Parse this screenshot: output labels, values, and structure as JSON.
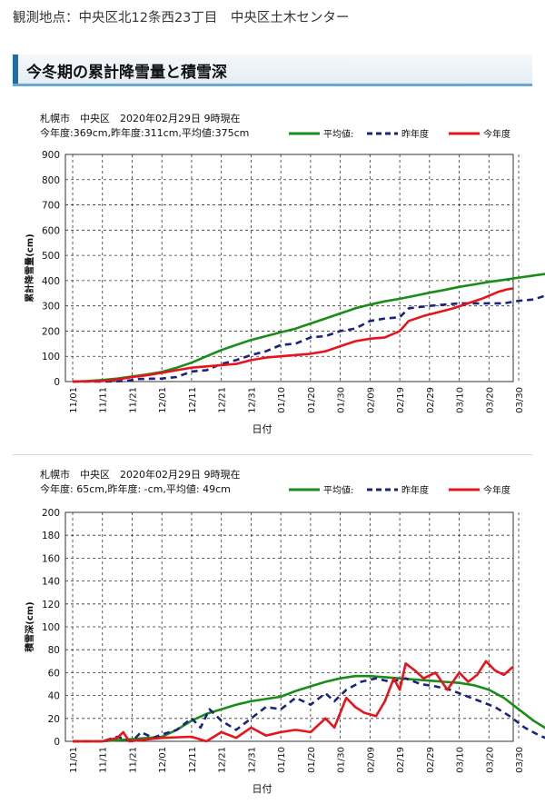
{
  "page": {
    "location": "観測地点：中央区北12条西23丁目　中央区土木センター",
    "heading": "今冬期の累計降雪量と積雪深"
  },
  "colors": {
    "avg": "#1a8c1a",
    "last": "#1a237e",
    "this": "#e8141c"
  },
  "chart_data": [
    {
      "type": "line",
      "header_line1": "札幌市　中央区　2020年02月29日 9時現在",
      "header_line2": "今年度:369cm,昨年度:311cm,平均値:375cm",
      "ylabel": "累計降雪量(cm)",
      "xlabel": "日付",
      "ylim": [
        0,
        900
      ],
      "yticks": [
        0,
        100,
        200,
        300,
        400,
        500,
        600,
        700,
        800,
        900
      ],
      "x_unit": "days since 11/01",
      "xticks": [
        "11/01",
        "11/11",
        "11/21",
        "12/01",
        "12/11",
        "12/21",
        "12/31",
        "01/10",
        "01/20",
        "01/30",
        "02/09",
        "02/19",
        "02/29",
        "03/10",
        "03/20",
        "03/30"
      ],
      "legend": [
        "平均値:",
        "昨年度",
        "今年度"
      ],
      "grid": true,
      "series": [
        {
          "name": "平均値:",
          "style": "solid",
          "color": "#1a8c1a",
          "points": [
            [
              0,
              0
            ],
            [
              5,
              2
            ],
            [
              10,
              6
            ],
            [
              15,
              12
            ],
            [
              20,
              20
            ],
            [
              25,
              28
            ],
            [
              30,
              38
            ],
            [
              35,
              55
            ],
            [
              40,
              75
            ],
            [
              45,
              100
            ],
            [
              50,
              125
            ],
            [
              55,
              145
            ],
            [
              60,
              165
            ],
            [
              65,
              180
            ],
            [
              70,
              195
            ],
            [
              75,
              210
            ],
            [
              80,
              230
            ],
            [
              85,
              250
            ],
            [
              90,
              270
            ],
            [
              95,
              290
            ],
            [
              100,
              305
            ],
            [
              105,
              318
            ],
            [
              110,
              328
            ],
            [
              115,
              340
            ],
            [
              120,
              352
            ],
            [
              125,
              363
            ],
            [
              130,
              375
            ],
            [
              135,
              385
            ],
            [
              140,
              395
            ],
            [
              145,
              403
            ],
            [
              150,
              412
            ],
            [
              155,
              420
            ],
            [
              160,
              428
            ],
            [
              163,
              430
            ]
          ]
        },
        {
          "name": "昨年度",
          "style": "dashed",
          "color": "#1a237e",
          "points": [
            [
              0,
              0
            ],
            [
              10,
              0
            ],
            [
              18,
              2
            ],
            [
              22,
              10
            ],
            [
              30,
              12
            ],
            [
              35,
              18
            ],
            [
              40,
              40
            ],
            [
              45,
              45
            ],
            [
              50,
              70
            ],
            [
              55,
              85
            ],
            [
              60,
              105
            ],
            [
              65,
              120
            ],
            [
              70,
              145
            ],
            [
              75,
              150
            ],
            [
              80,
              175
            ],
            [
              85,
              180
            ],
            [
              90,
              200
            ],
            [
              95,
              210
            ],
            [
              100,
              240
            ],
            [
              105,
              250
            ],
            [
              110,
              255
            ],
            [
              113,
              290
            ],
            [
              120,
              300
            ],
            [
              125,
              305
            ],
            [
              130,
              310
            ],
            [
              140,
              310
            ],
            [
              145,
              310
            ],
            [
              150,
              320
            ],
            [
              155,
              325
            ],
            [
              160,
              345
            ],
            [
              163,
              348
            ]
          ]
        },
        {
          "name": "今年度",
          "style": "solid",
          "color": "#e8141c",
          "points": [
            [
              0,
              0
            ],
            [
              10,
              2
            ],
            [
              15,
              8
            ],
            [
              20,
              18
            ],
            [
              25,
              25
            ],
            [
              30,
              35
            ],
            [
              35,
              45
            ],
            [
              40,
              55
            ],
            [
              45,
              60
            ],
            [
              50,
              65
            ],
            [
              55,
              70
            ],
            [
              60,
              85
            ],
            [
              65,
              95
            ],
            [
              70,
              100
            ],
            [
              75,
              105
            ],
            [
              80,
              110
            ],
            [
              85,
              120
            ],
            [
              90,
              140
            ],
            [
              95,
              160
            ],
            [
              100,
              170
            ],
            [
              105,
              175
            ],
            [
              110,
              200
            ],
            [
              113,
              240
            ],
            [
              118,
              260
            ],
            [
              123,
              275
            ],
            [
              128,
              290
            ],
            [
              133,
              310
            ],
            [
              138,
              330
            ],
            [
              143,
              355
            ],
            [
              146,
              365
            ],
            [
              148,
              369
            ]
          ]
        }
      ]
    },
    {
      "type": "line",
      "header_line1": "札幌市　中央区　2020年02月29日 9時現在",
      "header_line2": "今年度: 65cm,昨年度: -cm,平均値: 49cm",
      "ylabel": "積雪深(cm)",
      "xlabel": "日付",
      "ylim": [
        0,
        200
      ],
      "yticks": [
        0,
        20,
        40,
        60,
        80,
        100,
        120,
        140,
        160,
        180,
        200
      ],
      "x_unit": "days since 11/01",
      "xticks": [
        "11/01",
        "11/11",
        "11/21",
        "12/01",
        "12/11",
        "12/21",
        "12/31",
        "01/10",
        "01/20",
        "01/30",
        "02/09",
        "02/19",
        "02/29",
        "03/10",
        "03/20",
        "03/30"
      ],
      "legend": [
        "平均値:",
        "昨年度",
        "今年度"
      ],
      "grid": true,
      "series": [
        {
          "name": "平均値:",
          "style": "solid",
          "color": "#1a8c1a",
          "points": [
            [
              0,
              0
            ],
            [
              10,
              0
            ],
            [
              20,
              2
            ],
            [
              30,
              4
            ],
            [
              35,
              10
            ],
            [
              40,
              18
            ],
            [
              45,
              24
            ],
            [
              50,
              28
            ],
            [
              55,
              32
            ],
            [
              60,
              35
            ],
            [
              65,
              37
            ],
            [
              70,
              39
            ],
            [
              75,
              44
            ],
            [
              80,
              48
            ],
            [
              85,
              52
            ],
            [
              90,
              55
            ],
            [
              95,
              57
            ],
            [
              100,
              57
            ],
            [
              105,
              56
            ],
            [
              110,
              55
            ],
            [
              115,
              54
            ],
            [
              120,
              53
            ],
            [
              125,
              52
            ],
            [
              130,
              51
            ],
            [
              135,
              49
            ],
            [
              140,
              45
            ],
            [
              145,
              38
            ],
            [
              150,
              28
            ],
            [
              155,
              18
            ],
            [
              160,
              10
            ],
            [
              165,
              5
            ],
            [
              170,
              3
            ],
            [
              172,
              2
            ]
          ]
        },
        {
          "name": "昨年度",
          "style": "dashed",
          "color": "#1a237e",
          "points": [
            [
              0,
              0
            ],
            [
              10,
              0
            ],
            [
              15,
              4
            ],
            [
              20,
              0
            ],
            [
              23,
              8
            ],
            [
              27,
              3
            ],
            [
              30,
              6
            ],
            [
              35,
              10
            ],
            [
              40,
              20
            ],
            [
              43,
              12
            ],
            [
              46,
              28
            ],
            [
              50,
              18
            ],
            [
              55,
              10
            ],
            [
              60,
              20
            ],
            [
              65,
              30
            ],
            [
              70,
              28
            ],
            [
              75,
              38
            ],
            [
              80,
              32
            ],
            [
              85,
              42
            ],
            [
              88,
              35
            ],
            [
              92,
              45
            ],
            [
              97,
              52
            ],
            [
              102,
              55
            ],
            [
              107,
              52
            ],
            [
              112,
              55
            ],
            [
              117,
              50
            ],
            [
              122,
              48
            ],
            [
              127,
              45
            ],
            [
              132,
              40
            ],
            [
              137,
              35
            ],
            [
              142,
              30
            ],
            [
              147,
              22
            ],
            [
              152,
              12
            ],
            [
              157,
              5
            ],
            [
              162,
              0
            ],
            [
              167,
              0
            ],
            [
              170,
              8
            ],
            [
              172,
              5
            ]
          ]
        },
        {
          "name": "今年度",
          "style": "solid",
          "color": "#e8141c",
          "points": [
            [
              0,
              0
            ],
            [
              10,
              0
            ],
            [
              15,
              3
            ],
            [
              17,
              8
            ],
            [
              19,
              0
            ],
            [
              30,
              3
            ],
            [
              40,
              4
            ],
            [
              45,
              0
            ],
            [
              50,
              8
            ],
            [
              55,
              3
            ],
            [
              60,
              12
            ],
            [
              65,
              5
            ],
            [
              70,
              8
            ],
            [
              75,
              10
            ],
            [
              80,
              8
            ],
            [
              85,
              20
            ],
            [
              88,
              12
            ],
            [
              92,
              38
            ],
            [
              95,
              30
            ],
            [
              98,
              25
            ],
            [
              102,
              22
            ],
            [
              105,
              35
            ],
            [
              108,
              55
            ],
            [
              110,
              45
            ],
            [
              112,
              68
            ],
            [
              115,
              62
            ],
            [
              118,
              55
            ],
            [
              122,
              60
            ],
            [
              126,
              45
            ],
            [
              130,
              60
            ],
            [
              133,
              52
            ],
            [
              136,
              58
            ],
            [
              139,
              70
            ],
            [
              142,
              62
            ],
            [
              145,
              58
            ],
            [
              148,
              65
            ]
          ]
        }
      ]
    }
  ]
}
